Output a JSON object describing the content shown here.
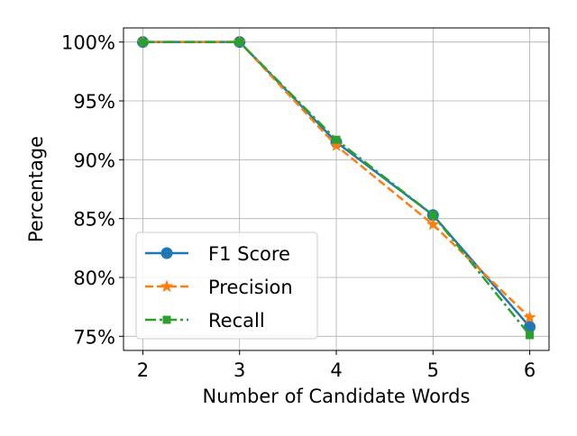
{
  "chart_data": {
    "type": "line",
    "title": "",
    "xlabel": "Number of Candidate Words",
    "ylabel": "Percentage",
    "x": [
      2,
      3,
      4,
      5,
      6
    ],
    "x_tick_labels": [
      "2",
      "3",
      "4",
      "5",
      "6"
    ],
    "xlim": [
      1.8,
      6.2
    ],
    "ylim": [
      73.8,
      101.2
    ],
    "y_ticks": [
      75,
      80,
      85,
      90,
      95,
      100
    ],
    "y_tick_labels": [
      "75%",
      "80%",
      "85%",
      "90%",
      "95%",
      "100%"
    ],
    "grid": true,
    "legend_position": "lower-left",
    "series": [
      {
        "name": "F1 Score",
        "values": [
          100,
          100,
          91.5,
          85.3,
          75.8
        ],
        "color": "#1f77b4",
        "line_style": "solid",
        "marker": "circle"
      },
      {
        "name": "Precision",
        "values": [
          100,
          100,
          91.2,
          84.5,
          76.6
        ],
        "color": "#ff7f0e",
        "line_style": "dashed",
        "marker": "star"
      },
      {
        "name": "Recall",
        "values": [
          100,
          100,
          91.7,
          85.3,
          75.1
        ],
        "color": "#2ca02c",
        "line_style": "dashdot",
        "marker": "square"
      }
    ]
  }
}
